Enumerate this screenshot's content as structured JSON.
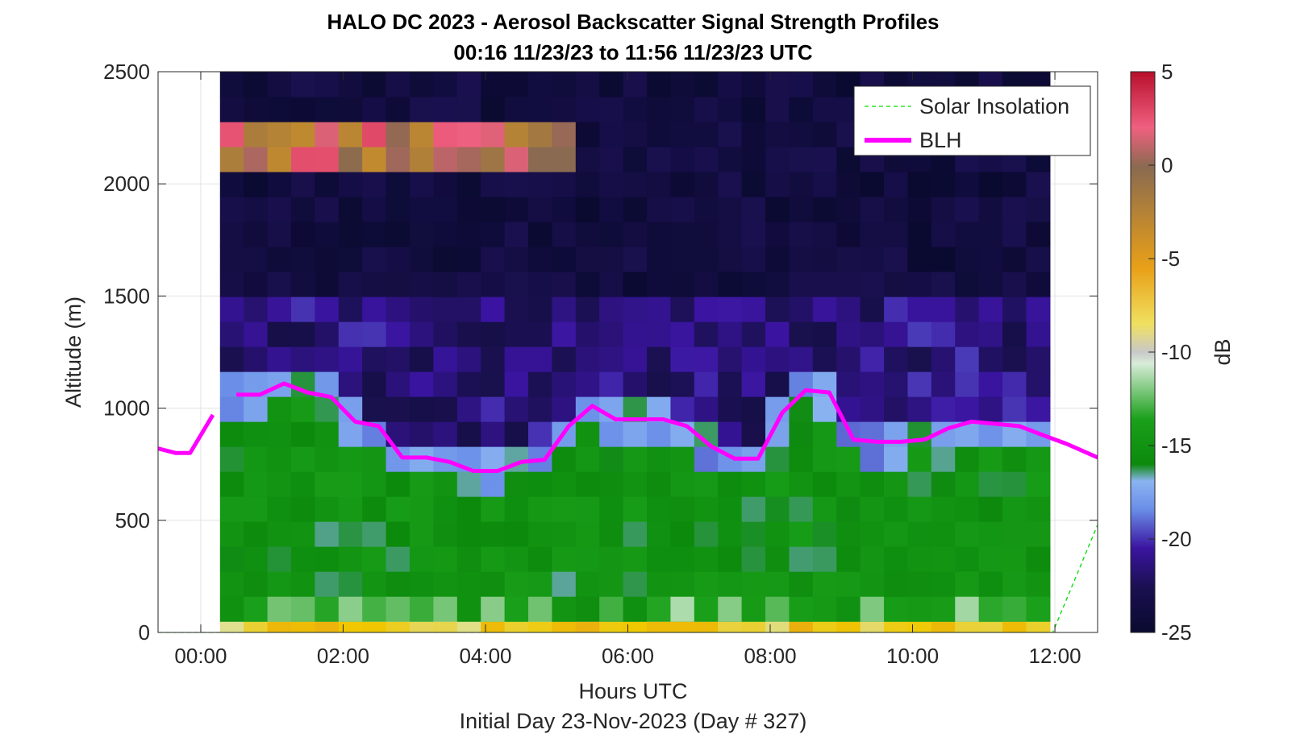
{
  "chart_data": {
    "type": "heatmap",
    "title": "HALO DC 2023 - Aerosol Backscatter Signal Strength Profiles",
    "subtitle": "00:16 11/23/23 to 11:56 11/23/23  UTC",
    "xlabel": "Hours UTC",
    "ylabel": "Altitude (m)",
    "footer": "Initial Day 23-Nov-2023 (Day # 327)",
    "xlim": [
      -0.6,
      12.6
    ],
    "ylim": [
      0,
      2500
    ],
    "x_ticks": [
      0,
      2,
      4,
      6,
      8,
      10,
      12
    ],
    "x_tick_labels": [
      "00:00",
      "02:00",
      "04:00",
      "06:00",
      "08:00",
      "10:00",
      "12:00"
    ],
    "y_ticks": [
      0,
      500,
      1000,
      1500,
      2000,
      2500
    ],
    "y_tick_labels": [
      "0",
      "500",
      "1000",
      "1500",
      "2000",
      "2500"
    ],
    "grid": true,
    "legend_position": "top-right",
    "colorbar": {
      "label": "dB",
      "range": [
        -25,
        5
      ],
      "ticks": [
        5,
        0,
        -5,
        -10,
        -15,
        -20,
        -25
      ],
      "tick_labels": [
        "5",
        "0",
        "-5",
        "-10",
        "-15",
        "-20",
        "-25"
      ]
    },
    "heatmap_extent_hours": [
      0.27,
      11.93
    ],
    "heatmap_columns": 35,
    "heatmap_rows": 23,
    "heatmap_layers": [
      {
        "from": 0,
        "to": 50,
        "value": -8
      },
      {
        "from": 50,
        "to": 150,
        "value": -14
      },
      {
        "from": 150,
        "to": 1000,
        "value": -16
      },
      {
        "from": 1000,
        "to": 1500,
        "value": -22
      },
      {
        "from": 1500,
        "to": 2500,
        "value": -24
      }
    ],
    "aerosol_layer": {
      "hours": [
        0.27,
        5.3
      ],
      "altitude": [
        2100,
        2300
      ],
      "value": 3
    },
    "series": [
      {
        "name": "Solar Insolation",
        "style": "dashed",
        "color": "#00dd00",
        "x": [
          -0.6,
          11.97,
          12.6
        ],
        "y": [
          0,
          0,
          480
        ]
      },
      {
        "name": "BLH",
        "style": "solid",
        "color": "#ff00ff",
        "segments": [
          {
            "x": [
              -0.6,
              -0.35,
              -0.15,
              0.17
            ],
            "y": [
              820,
              800,
              800,
              970
            ]
          },
          {
            "x": [
              0.5,
              0.83,
              1.17,
              1.5,
              1.83,
              2.17,
              2.5,
              2.83,
              3.17,
              3.5,
              3.83,
              4.17,
              4.5,
              4.83,
              5.17,
              5.5,
              5.83,
              6.17,
              6.5,
              6.83,
              7.17,
              7.5,
              7.83,
              8.17,
              8.5,
              8.83,
              9.17,
              9.5,
              9.83,
              10.17,
              10.5,
              10.83,
              11.17,
              11.5,
              11.83,
              12.17,
              12.6
            ],
            "y": [
              1060,
              1060,
              1110,
              1070,
              1050,
              940,
              920,
              780,
              780,
              760,
              720,
              720,
              760,
              770,
              920,
              1010,
              950,
              950,
              950,
              920,
              830,
              775,
              775,
              980,
              1080,
              1070,
              860,
              850,
              850,
              860,
              910,
              940,
              930,
              920,
              880,
              840,
              780
            ]
          }
        ]
      }
    ]
  },
  "colors": {
    "blh": "#ff00ff",
    "solar": "#00dd00",
    "colormap": [
      "#0a0a30",
      "#1a1050",
      "#3a14a0",
      "#6a8ee8",
      "#8ab4f0",
      "#0c8a0c",
      "#1aa01a",
      "#d8ecd8",
      "#f0c800",
      "#e8a018",
      "#8a6a50",
      "#f06080",
      "#b8102c"
    ]
  }
}
